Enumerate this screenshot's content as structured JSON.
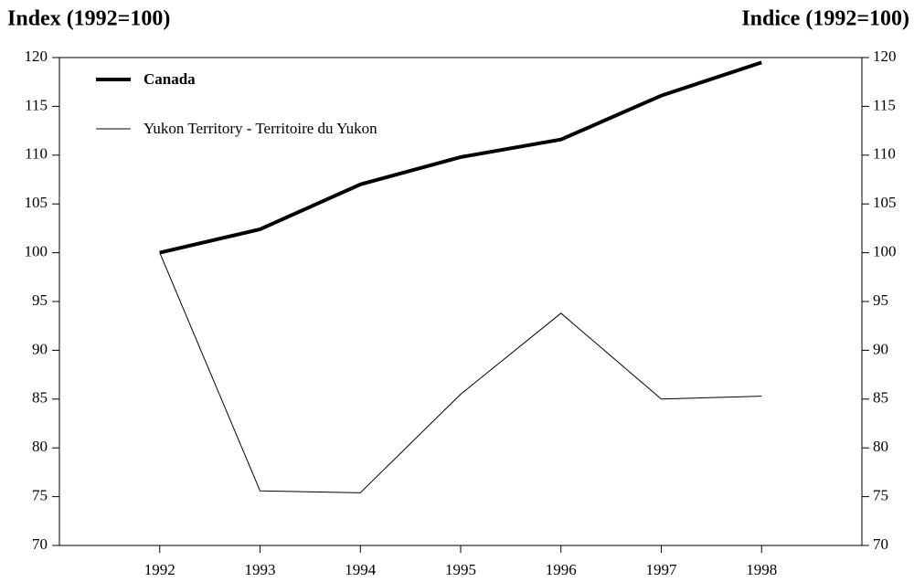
{
  "chart_data": {
    "type": "line",
    "ylabel": "Index (1992=100)",
    "y2label": "Indice (1992=100)",
    "x": [
      1992,
      1993,
      1994,
      1995,
      1996,
      1997,
      1998
    ],
    "xlim": [
      1991,
      1999
    ],
    "xticks": [
      1992,
      1993,
      1994,
      1995,
      1996,
      1997,
      1998
    ],
    "ylim": [
      70,
      120
    ],
    "yticks": [
      70,
      75,
      80,
      85,
      90,
      95,
      100,
      105,
      110,
      115,
      120
    ],
    "y2lim": [
      70,
      120
    ],
    "y2ticks": [
      70,
      75,
      80,
      85,
      90,
      95,
      100,
      105,
      110,
      115,
      120
    ],
    "legend": "upper left",
    "series": [
      {
        "name": "Canada",
        "color": "#000000",
        "linewidth": 4,
        "values": [
          100,
          102.4,
          107.0,
          109.8,
          111.6,
          116.1,
          119.5
        ]
      },
      {
        "name": "Yukon Territory - Territoire du Yukon",
        "color": "#000000",
        "linewidth": 1,
        "values": [
          100,
          75.6,
          75.4,
          85.5,
          93.8,
          85.0,
          85.3
        ]
      }
    ]
  }
}
